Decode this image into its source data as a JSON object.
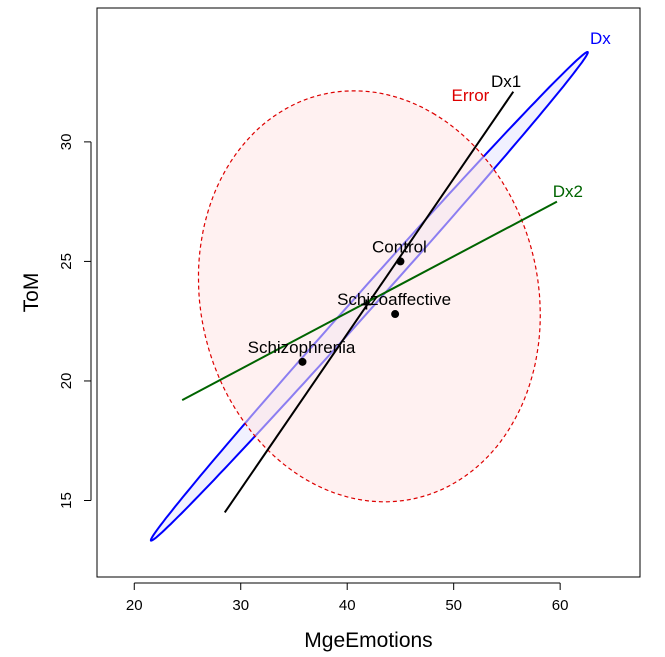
{
  "chart_data": {
    "type": "scatter",
    "xlabel": "MgeEmotions",
    "ylabel": "ToM",
    "xlim": [
      16.5,
      67.5
    ],
    "ylim": [
      11.8,
      35.6
    ],
    "x_ticks": [
      20,
      30,
      40,
      50,
      60
    ],
    "y_ticks": [
      15,
      20,
      25,
      30
    ],
    "x_tick_labels": [
      "20",
      "30",
      "40",
      "50",
      "60"
    ],
    "y_tick_labels": [
      "15",
      "20",
      "25",
      "30"
    ],
    "grid": false,
    "points": [
      {
        "label": "Control",
        "x": 45.0,
        "y": 25.0
      },
      {
        "label": "Schizoaffective",
        "x": 44.5,
        "y": 22.8
      },
      {
        "label": "Schizophrenia",
        "x": 35.8,
        "y": 20.8
      }
    ],
    "grand_mean_marker": {
      "x": 41.8,
      "y": 23.2,
      "symbol": "+"
    },
    "ellipses": [
      {
        "name": "Dx",
        "color": "#0000ff",
        "fill": "#e6e6ff",
        "line_style": "solid",
        "center": [
          42.08,
          23.54
        ],
        "major_tip": [
          62.6,
          33.75
        ],
        "minor_semi_axis_dir": [
          0.24,
          -0.48
        ],
        "label_at": [
          62.8,
          34.1
        ]
      },
      {
        "name": "Error",
        "color": "#dd0000",
        "fill": "#ffe6e6",
        "line_style": "dashed",
        "center": [
          42.08,
          23.54
        ],
        "major_tip": [
          48.05,
          31.2
        ],
        "minor_semi_axis_dir": [
          14.9,
          -3.9
        ],
        "label_at": [
          49.8,
          31.7
        ]
      }
    ],
    "lines": [
      {
        "name": "Dx1",
        "color": "#000000",
        "x": [
          28.5,
          55.6
        ],
        "y": [
          14.5,
          32.1
        ],
        "label_at": [
          53.5,
          32.3
        ]
      },
      {
        "name": "Dx2",
        "color": "#006400",
        "x": [
          24.5,
          59.7
        ],
        "y": [
          19.2,
          27.5
        ],
        "label_at": [
          59.3,
          27.7
        ]
      }
    ]
  }
}
